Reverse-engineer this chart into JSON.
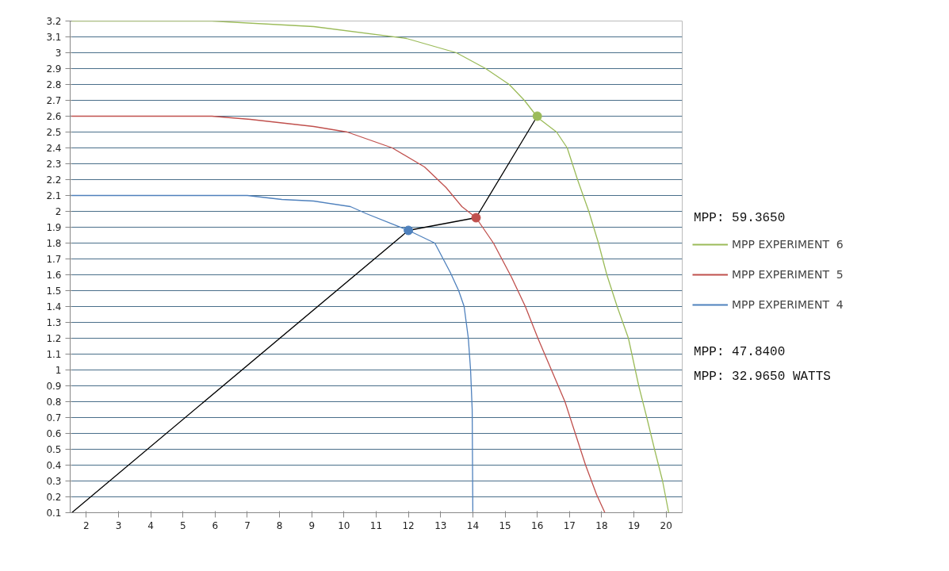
{
  "chart_data": {
    "type": "line",
    "xlim": [
      1.5,
      20.5
    ],
    "xticks": [
      2,
      3,
      4,
      5,
      6,
      7,
      8,
      9,
      10,
      11,
      12,
      13,
      14,
      15,
      16,
      17,
      18,
      19,
      20
    ],
    "ylim": [
      0.1,
      3.2
    ],
    "yticks": [
      0.1,
      0.2,
      0.3,
      0.4,
      0.5,
      0.6,
      0.7,
      0.8,
      0.9,
      1,
      1.1,
      1.2,
      1.3,
      1.4,
      1.5,
      1.6,
      1.7,
      1.8,
      1.9,
      2,
      2.1,
      2.2,
      2.3,
      2.4,
      2.5,
      2.6,
      2.7,
      2.8,
      2.9,
      3,
      3.1,
      3.2
    ],
    "grid": "y",
    "legend": "right",
    "marker": "none",
    "line_style": "solid",
    "annotations": [
      "MPP: 59.3650",
      "MPP: 47.8400",
      "MPP: 32.9650 WATTS"
    ],
    "series": [
      {
        "name": "MPP EXPERIMENT  6",
        "color": "#9bbb59",
        "x": [
          1.5,
          5.9,
          9.06,
          11.94,
          13.49,
          14.4,
          15.13,
          15.6,
          16.02,
          16.6,
          16.93,
          17.25,
          17.6,
          17.9,
          18.16,
          18.48,
          18.83,
          19.15,
          19.4,
          19.64,
          19.89,
          20.08
        ],
        "values": [
          3.2,
          3.2,
          3.165,
          3.09,
          3.0,
          2.9,
          2.8,
          2.7,
          2.59,
          2.5,
          2.4,
          2.2,
          2.0,
          1.8,
          1.6,
          1.4,
          1.2,
          0.9,
          0.7,
          0.5,
          0.3,
          0.1
        ]
      },
      {
        "name": "MPP EXPERIMENT  5",
        "color": "#c0504d",
        "x": [
          1.5,
          5.9,
          7.09,
          9.06,
          10.1,
          11.5,
          12.5,
          13.17,
          13.66,
          14.1,
          14.64,
          15.2,
          15.63,
          16.02,
          16.44,
          16.86,
          17.18,
          17.5,
          17.84,
          18.1
        ],
        "values": [
          2.6,
          2.6,
          2.58,
          2.535,
          2.5,
          2.4,
          2.28,
          2.15,
          2.03,
          1.96,
          1.8,
          1.585,
          1.4,
          1.2,
          1.0,
          0.8,
          0.6,
          0.4,
          0.215,
          0.1
        ]
      },
      {
        "name": "MPP EXPERIMENT  4",
        "color": "#4f81bd",
        "x": [
          1.5,
          7.0,
          8.07,
          9.06,
          10.2,
          10.7,
          12.0,
          12.82,
          13.3,
          13.56,
          13.73,
          13.86,
          13.93,
          13.98,
          14.0
        ],
        "values": [
          2.1,
          2.1,
          2.075,
          2.065,
          2.03,
          1.985,
          1.88,
          1.8,
          1.615,
          1.5,
          1.4,
          1.2,
          1.0,
          0.75,
          0.1
        ]
      },
      {
        "type": "line",
        "color": "#000000",
        "x": [
          1.55,
          12.0,
          14.1,
          16.0
        ],
        "values": [
          0.1,
          1.88,
          1.96,
          2.6
        ]
      },
      {
        "type": "scatter",
        "marker": "circle",
        "colors": [
          "#4f81bd",
          "#c0504d",
          "#9bbb59"
        ],
        "x": [
          12.0,
          14.1,
          16.0
        ],
        "values": [
          1.88,
          1.96,
          2.6
        ]
      }
    ]
  }
}
